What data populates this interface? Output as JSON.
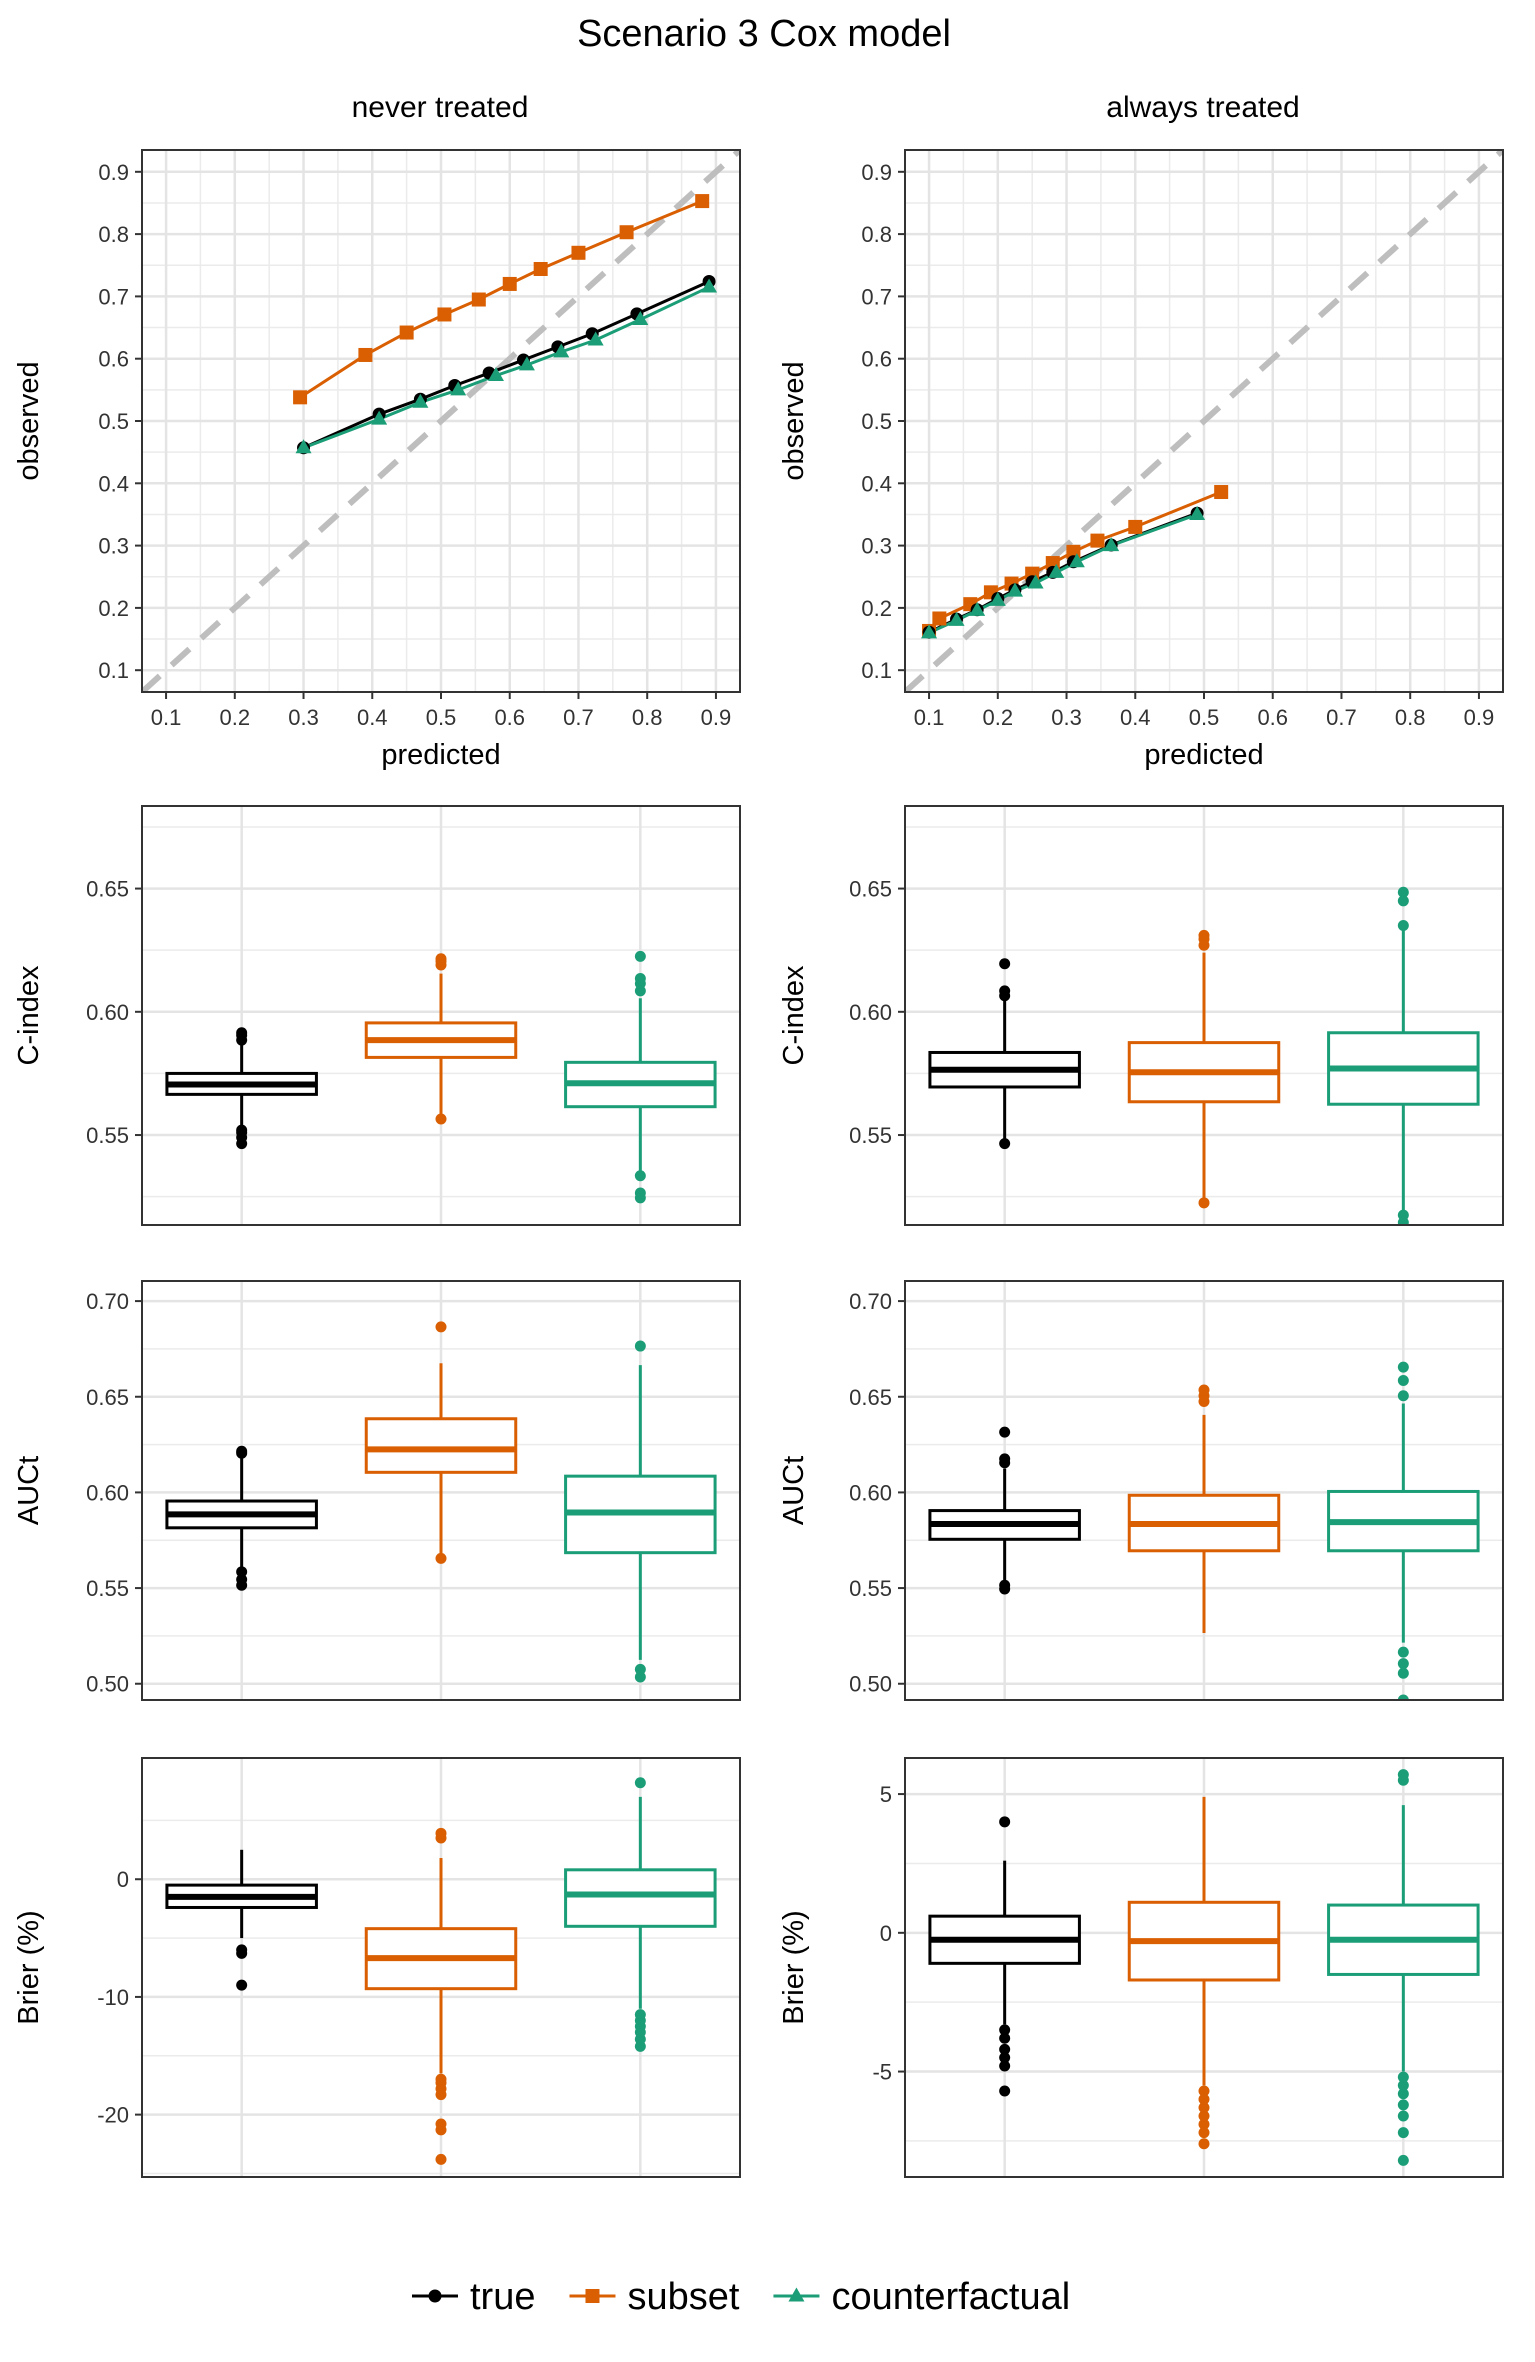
{
  "figure": {
    "title": "Scenario 3 Cox model",
    "columns": [
      "never treated",
      "always treated"
    ]
  },
  "legend": {
    "items": [
      {
        "key": "true",
        "label": "true",
        "color": "#000000",
        "marker": "circle"
      },
      {
        "key": "subset",
        "label": "subset",
        "color": "#D95F02",
        "marker": "square"
      },
      {
        "key": "counterfactual",
        "label": "counterfactual",
        "color": "#1B9E77",
        "marker": "triangle"
      }
    ]
  },
  "chart_data": [
    {
      "type": "line",
      "panel": "calibration",
      "column": "never treated",
      "xlabel": "predicted",
      "ylabel": "observed",
      "xlim": [
        0.065,
        0.935
      ],
      "ylim": [
        0.065,
        0.935
      ],
      "xticks": [
        "0.1",
        "0.2",
        "0.3",
        "0.4",
        "0.5",
        "0.6",
        "0.7",
        "0.8",
        "0.9"
      ],
      "yticks": [
        "0.1",
        "0.2",
        "0.3",
        "0.4",
        "0.5",
        "0.6",
        "0.7",
        "0.8",
        "0.9"
      ],
      "reference_line": "y = x",
      "series": [
        {
          "name": "true",
          "x": [
            0.3,
            0.41,
            0.47,
            0.52,
            0.57,
            0.62,
            0.67,
            0.72,
            0.785,
            0.89
          ],
          "y": [
            0.457,
            0.511,
            0.535,
            0.557,
            0.577,
            0.598,
            0.619,
            0.64,
            0.672,
            0.724
          ]
        },
        {
          "name": "subset",
          "x": [
            0.295,
            0.39,
            0.45,
            0.505,
            0.555,
            0.6,
            0.645,
            0.7,
            0.77,
            0.88
          ],
          "y": [
            0.538,
            0.606,
            0.642,
            0.671,
            0.695,
            0.72,
            0.744,
            0.77,
            0.803,
            0.853
          ]
        },
        {
          "name": "counterfactual",
          "x": [
            0.3,
            0.41,
            0.47,
            0.525,
            0.58,
            0.625,
            0.675,
            0.725,
            0.79,
            0.89
          ],
          "y": [
            0.457,
            0.503,
            0.53,
            0.55,
            0.573,
            0.59,
            0.611,
            0.63,
            0.663,
            0.715
          ]
        }
      ]
    },
    {
      "type": "line",
      "panel": "calibration",
      "column": "always treated",
      "xlabel": "predicted",
      "ylabel": "observed",
      "xlim": [
        0.065,
        0.935
      ],
      "ylim": [
        0.065,
        0.935
      ],
      "xticks": [
        "0.1",
        "0.2",
        "0.3",
        "0.4",
        "0.5",
        "0.6",
        "0.7",
        "0.8",
        "0.9"
      ],
      "yticks": [
        "0.1",
        "0.2",
        "0.3",
        "0.4",
        "0.5",
        "0.6",
        "0.7",
        "0.8",
        "0.9"
      ],
      "reference_line": "y = x",
      "series": [
        {
          "name": "true",
          "x": [
            0.1,
            0.14,
            0.17,
            0.2,
            0.225,
            0.25,
            0.28,
            0.31,
            0.365,
            0.49
          ],
          "y": [
            0.161,
            0.182,
            0.197,
            0.215,
            0.229,
            0.242,
            0.257,
            0.274,
            0.301,
            0.352
          ]
        },
        {
          "name": "subset",
          "x": [
            0.1,
            0.115,
            0.16,
            0.19,
            0.22,
            0.25,
            0.28,
            0.31,
            0.345,
            0.4,
            0.525
          ],
          "y": [
            0.163,
            0.183,
            0.206,
            0.225,
            0.239,
            0.255,
            0.272,
            0.29,
            0.308,
            0.33,
            0.386
          ]
        },
        {
          "name": "counterfactual",
          "x": [
            0.1,
            0.14,
            0.17,
            0.2,
            0.225,
            0.255,
            0.285,
            0.315,
            0.365,
            0.49
          ],
          "y": [
            0.16,
            0.18,
            0.196,
            0.212,
            0.227,
            0.24,
            0.257,
            0.274,
            0.3,
            0.35
          ]
        }
      ]
    },
    {
      "type": "box",
      "metric": "cindex",
      "column": "never treated",
      "ylabel": "C-index",
      "ylim": [
        0.5135,
        0.6835
      ],
      "yticks": [
        0.55,
        0.6,
        0.65
      ],
      "ytick_labels": [
        "0.55",
        "0.60",
        "0.65"
      ],
      "boxes": [
        {
          "name": "true",
          "q1": 0.5665,
          "median": 0.5705,
          "q3": 0.575,
          "whisker_low": 0.5535,
          "whisker_high": 0.587,
          "outliers": [
            0.5465,
            0.549,
            0.551,
            0.552,
            0.5885,
            0.5905,
            0.5915
          ]
        },
        {
          "name": "subset",
          "q1": 0.5815,
          "median": 0.5885,
          "q3": 0.5955,
          "whisker_low": 0.5575,
          "whisker_high": 0.6155,
          "outliers": [
            0.5565,
            0.619,
            0.6205,
            0.6215
          ]
        },
        {
          "name": "counterfactual",
          "q1": 0.5615,
          "median": 0.571,
          "q3": 0.5795,
          "whisker_low": 0.535,
          "whisker_high": 0.6055,
          "outliers": [
            0.5245,
            0.5265,
            0.5335,
            0.6085,
            0.6115,
            0.6135,
            0.6225
          ]
        }
      ]
    },
    {
      "type": "box",
      "metric": "cindex",
      "column": "always treated",
      "ylabel": "C-index",
      "ylim": [
        0.5135,
        0.6835
      ],
      "yticks": [
        0.55,
        0.6,
        0.65
      ],
      "ytick_labels": [
        "0.55",
        "0.60",
        "0.65"
      ],
      "boxes": [
        {
          "name": "true",
          "q1": 0.5695,
          "median": 0.5765,
          "q3": 0.5835,
          "whisker_low": 0.5475,
          "whisker_high": 0.6045,
          "outliers": [
            0.5465,
            0.6065,
            0.6085,
            0.6195
          ]
        },
        {
          "name": "subset",
          "q1": 0.5635,
          "median": 0.5755,
          "q3": 0.5875,
          "whisker_low": 0.5235,
          "whisker_high": 0.624,
          "outliers": [
            0.5225,
            0.627,
            0.6295,
            0.631
          ]
        },
        {
          "name": "counterfactual",
          "q1": 0.5625,
          "median": 0.577,
          "q3": 0.5915,
          "whisker_low": 0.5195,
          "whisker_high": 0.633,
          "outliers": [
            0.5145,
            0.5175,
            0.635,
            0.645,
            0.6485
          ]
        }
      ]
    },
    {
      "type": "box",
      "metric": "auct",
      "column": "never treated",
      "ylabel": "AUCt",
      "ylim": [
        0.4915,
        0.7105
      ],
      "yticks": [
        0.5,
        0.55,
        0.6,
        0.65,
        0.7
      ],
      "ytick_labels": [
        "0.50",
        "0.55",
        "0.60",
        "0.65",
        "0.70"
      ],
      "boxes": [
        {
          "name": "true",
          "q1": 0.5815,
          "median": 0.5885,
          "q3": 0.5955,
          "whisker_low": 0.5605,
          "whisker_high": 0.618,
          "outliers": [
            0.5515,
            0.5545,
            0.5585,
            0.6205,
            0.6215
          ]
        },
        {
          "name": "subset",
          "q1": 0.6105,
          "median": 0.6225,
          "q3": 0.6385,
          "whisker_low": 0.5665,
          "whisker_high": 0.6675,
          "outliers": [
            0.5655,
            0.6865
          ]
        },
        {
          "name": "counterfactual",
          "q1": 0.5685,
          "median": 0.5895,
          "q3": 0.6085,
          "whisker_low": 0.5125,
          "whisker_high": 0.6665,
          "outliers": [
            0.5035,
            0.5075,
            0.6765
          ]
        }
      ]
    },
    {
      "type": "box",
      "metric": "auct",
      "column": "always treated",
      "ylabel": "AUCt",
      "ylim": [
        0.4915,
        0.7105
      ],
      "yticks": [
        0.5,
        0.55,
        0.6,
        0.65,
        0.7
      ],
      "ytick_labels": [
        "0.50",
        "0.55",
        "0.60",
        "0.65",
        "0.70"
      ],
      "boxes": [
        {
          "name": "true",
          "q1": 0.5755,
          "median": 0.5835,
          "q3": 0.5905,
          "whisker_low": 0.5525,
          "whisker_high": 0.6125,
          "outliers": [
            0.5495,
            0.5515,
            0.6155,
            0.6175,
            0.6315
          ]
        },
        {
          "name": "subset",
          "q1": 0.5695,
          "median": 0.5835,
          "q3": 0.5985,
          "whisker_low": 0.5265,
          "whisker_high": 0.6405,
          "outliers": [
            0.6475,
            0.6505,
            0.6535
          ]
        },
        {
          "name": "counterfactual",
          "q1": 0.5695,
          "median": 0.5845,
          "q3": 0.6005,
          "whisker_low": 0.5215,
          "whisker_high": 0.6465,
          "outliers": [
            0.4915,
            0.5055,
            0.5105,
            0.5165,
            0.6505,
            0.6585,
            0.6655
          ]
        }
      ]
    },
    {
      "type": "box",
      "metric": "brier",
      "column": "never treated",
      "ylabel": "Brier (%)",
      "ylim": [
        -25.3,
        10.3
      ],
      "yticks": [
        -20,
        -10,
        0
      ],
      "ytick_labels": [
        "-20",
        "-10",
        "0"
      ],
      "boxes": [
        {
          "name": "true",
          "q1": -2.4,
          "median": -1.5,
          "q3": -0.5,
          "whisker_low": -5.0,
          "whisker_high": 2.5,
          "outliers": [
            -9.0,
            -6.3,
            -6.0
          ]
        },
        {
          "name": "subset",
          "q1": -9.3,
          "median": -6.7,
          "q3": -4.2,
          "whisker_low": -16.5,
          "whisker_high": 1.8,
          "outliers": [
            -23.8,
            -21.3,
            -20.8,
            -18.3,
            -17.8,
            -17.3,
            -17.0,
            3.5,
            3.9
          ]
        },
        {
          "name": "counterfactual",
          "q1": -4.0,
          "median": -1.3,
          "q3": 0.8,
          "whisker_low": -11.0,
          "whisker_high": 7.0,
          "outliers": [
            -14.2,
            -13.6,
            -13.0,
            -12.5,
            -12.0,
            -11.5,
            8.2
          ]
        }
      ]
    },
    {
      "type": "box",
      "metric": "brier",
      "column": "always treated",
      "ylabel": "Brier (%)",
      "ylim": [
        -8.8,
        6.3
      ],
      "yticks": [
        -5,
        0,
        5
      ],
      "ytick_labels": [
        "-5",
        "0",
        "5"
      ],
      "boxes": [
        {
          "name": "true",
          "q1": -1.1,
          "median": -0.25,
          "q3": 0.6,
          "whisker_low": -3.3,
          "whisker_high": 2.6,
          "outliers": [
            -5.7,
            -4.8,
            -4.5,
            -4.2,
            -3.8,
            -3.5,
            4.0
          ]
        },
        {
          "name": "subset",
          "q1": -1.7,
          "median": -0.3,
          "q3": 1.1,
          "whisker_low": -5.5,
          "whisker_high": 4.9,
          "outliers": [
            -7.6,
            -7.2,
            -6.9,
            -6.6,
            -6.3,
            -6.0,
            -5.7
          ]
        },
        {
          "name": "counterfactual",
          "q1": -1.5,
          "median": -0.25,
          "q3": 1.0,
          "whisker_low": -5.0,
          "whisker_high": 4.6,
          "outliers": [
            -8.2,
            -7.2,
            -6.6,
            -6.2,
            -5.8,
            -5.5,
            -5.2,
            5.5,
            5.7
          ]
        }
      ]
    }
  ]
}
